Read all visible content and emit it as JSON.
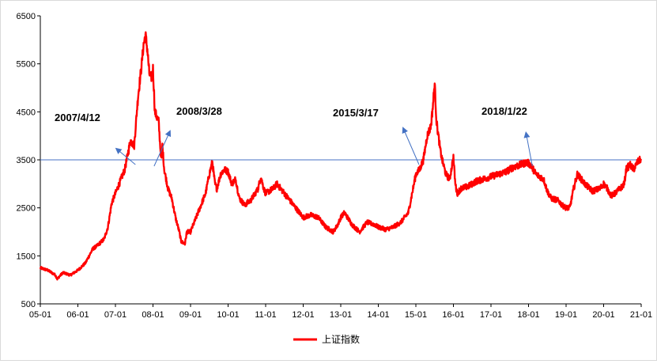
{
  "chart_data": {
    "type": "line",
    "title": "",
    "xlabel": "",
    "ylabel": "",
    "x_tick_labels": [
      "05-01",
      "06-01",
      "07-01",
      "08-01",
      "09-01",
      "10-01",
      "11-01",
      "12-01",
      "13-01",
      "14-01",
      "15-01",
      "16-01",
      "17-01",
      "18-01",
      "19-01",
      "20-01",
      "21-01"
    ],
    "y_ticks": [
      500,
      1500,
      2500,
      3500,
      4500,
      5500,
      6500
    ],
    "ylim": [
      500,
      6500
    ],
    "xlim": [
      2005.0,
      2021.0
    ],
    "grid": false,
    "legend_position": "bottom",
    "reference_line": {
      "value": 3500,
      "color": "#4472c4"
    },
    "series": [
      {
        "name": "上证指数",
        "color": "#ff0000",
        "x": [
          2005.0,
          2005.2,
          2005.4,
          2005.45,
          2005.6,
          2005.8,
          2006.0,
          2006.2,
          2006.4,
          2006.5,
          2006.7,
          2006.8,
          2006.9,
          2007.0,
          2007.1,
          2007.25,
          2007.3,
          2007.4,
          2007.5,
          2007.6,
          2007.7,
          2007.75,
          2007.8,
          2007.85,
          2007.9,
          2007.95,
          2008.0,
          2008.05,
          2008.1,
          2008.15,
          2008.2,
          2008.23,
          2008.25,
          2008.3,
          2008.4,
          2008.5,
          2008.6,
          2008.7,
          2008.75,
          2008.85,
          2008.9,
          2009.0,
          2009.2,
          2009.4,
          2009.5,
          2009.58,
          2009.65,
          2009.7,
          2009.8,
          2009.9,
          2010.0,
          2010.1,
          2010.2,
          2010.3,
          2010.45,
          2010.5,
          2010.6,
          2010.8,
          2010.87,
          2010.95,
          2011.0,
          2011.2,
          2011.3,
          2011.5,
          2011.7,
          2011.85,
          2012.0,
          2012.2,
          2012.4,
          2012.6,
          2012.8,
          2012.92,
          2013.0,
          2013.1,
          2013.3,
          2013.5,
          2013.6,
          2013.7,
          2013.9,
          2014.0,
          2014.2,
          2014.4,
          2014.6,
          2014.8,
          2014.9,
          2015.0,
          2015.1,
          2015.2,
          2015.3,
          2015.4,
          2015.45,
          2015.5,
          2015.55,
          2015.6,
          2015.65,
          2015.7,
          2015.8,
          2015.9,
          2016.0,
          2016.05,
          2016.1,
          2016.2,
          2016.4,
          2016.6,
          2016.8,
          2017.0,
          2017.2,
          2017.4,
          2017.6,
          2017.8,
          2017.95,
          2018.05,
          2018.2,
          2018.4,
          2018.5,
          2018.6,
          2018.8,
          2018.9,
          2019.0,
          2019.1,
          2019.2,
          2019.3,
          2019.5,
          2019.7,
          2019.9,
          2020.0,
          2020.1,
          2020.2,
          2020.3,
          2020.5,
          2020.55,
          2020.6,
          2020.7,
          2020.8,
          2020.9,
          2021.0
        ],
        "values": [
          1250,
          1200,
          1100,
          1020,
          1150,
          1100,
          1200,
          1350,
          1650,
          1700,
          1850,
          2100,
          2600,
          2800,
          3000,
          3300,
          3500,
          3900,
          3800,
          4800,
          5500,
          5900,
          6100,
          5800,
          5300,
          5200,
          5400,
          4500,
          4400,
          4300,
          3700,
          3500,
          3800,
          3300,
          2900,
          2700,
          2300,
          2000,
          1800,
          1750,
          2000,
          2000,
          2400,
          2800,
          3200,
          3450,
          3000,
          2900,
          3200,
          3300,
          3250,
          3000,
          3100,
          2700,
          2550,
          2600,
          2650,
          2900,
          3150,
          2900,
          2800,
          2900,
          3000,
          2800,
          2600,
          2450,
          2300,
          2350,
          2300,
          2100,
          2000,
          2150,
          2300,
          2400,
          2150,
          2000,
          2100,
          2200,
          2150,
          2100,
          2050,
          2100,
          2200,
          2400,
          2800,
          3200,
          3300,
          3500,
          4000,
          4200,
          4600,
          5100,
          4300,
          4000,
          3700,
          3500,
          3200,
          3100,
          3550,
          3000,
          2800,
          2900,
          2950,
          3050,
          3100,
          3150,
          3200,
          3250,
          3350,
          3400,
          3450,
          3400,
          3200,
          3100,
          2850,
          2700,
          2650,
          2550,
          2500,
          2500,
          2900,
          3200,
          3000,
          2850,
          2900,
          3000,
          2900,
          2750,
          2800,
          2950,
          3000,
          3300,
          3400,
          3300,
          3450,
          3520
        ]
      }
    ],
    "annotations": [
      {
        "text": "2007/4/12",
        "x": 2007.28,
        "y": 3500
      },
      {
        "text": "2008/3/28",
        "x": 2008.24,
        "y": 3500
      },
      {
        "text": "2015/3/17",
        "x": 2015.21,
        "y": 3500
      },
      {
        "text": "2018/1/22",
        "x": 2018.06,
        "y": 3500
      }
    ]
  }
}
